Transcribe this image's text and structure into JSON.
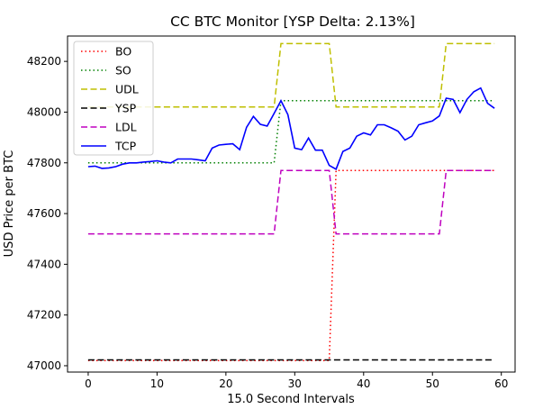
{
  "chart_data": {
    "type": "line",
    "title": "CC BTC Monitor [YSP Delta: 2.13%]",
    "xlabel": "15.0 Second Intervals",
    "ylabel": "USD Price per BTC",
    "xlim": [
      -3,
      62
    ],
    "ylim": [
      46975,
      48300
    ],
    "xticks": [
      0,
      10,
      20,
      30,
      40,
      50,
      60
    ],
    "yticks": [
      47000,
      47200,
      47400,
      47600,
      47800,
      48000,
      48200
    ],
    "grid": false,
    "legend": {
      "position": "top-left"
    },
    "series": [
      {
        "name": "BO",
        "color": "#ff0000",
        "style": "dotted",
        "x": [
          0,
          35,
          36,
          59
        ],
        "y": [
          47020,
          47020,
          47770,
          47770
        ]
      },
      {
        "name": "SO",
        "color": "#008000",
        "style": "dotted",
        "x": [
          0,
          27,
          28,
          59
        ],
        "y": [
          47800,
          47800,
          48045,
          48045
        ]
      },
      {
        "name": "UDL",
        "color": "#bfbf00",
        "style": "dashed",
        "x": [
          0,
          27,
          28,
          35,
          36,
          51,
          52,
          59
        ],
        "y": [
          48020,
          48020,
          48270,
          48270,
          48020,
          48020,
          48270,
          48270
        ]
      },
      {
        "name": "YSP",
        "color": "#000000",
        "style": "dashed",
        "x": [
          0,
          59
        ],
        "y": [
          47023,
          47023
        ]
      },
      {
        "name": "LDL",
        "color": "#bf00bf",
        "style": "dashed",
        "x": [
          0,
          27,
          28,
          35,
          36,
          51,
          52,
          59
        ],
        "y": [
          47520,
          47520,
          47770,
          47770,
          47520,
          47520,
          47770,
          47770
        ]
      },
      {
        "name": "TCP",
        "color": "#0000ff",
        "style": "solid",
        "x": [
          0,
          1,
          2,
          3,
          4,
          5,
          6,
          7,
          8,
          9,
          10,
          11,
          12,
          13,
          14,
          15,
          16,
          17,
          18,
          19,
          20,
          21,
          22,
          23,
          24,
          25,
          26,
          27,
          28,
          29,
          30,
          31,
          32,
          33,
          34,
          35,
          36,
          37,
          38,
          39,
          40,
          41,
          42,
          43,
          44,
          45,
          46,
          47,
          48,
          49,
          50,
          51,
          52,
          53,
          54,
          55,
          56,
          57,
          58,
          59
        ],
        "y": [
          47785,
          47787,
          47778,
          47780,
          47785,
          47795,
          47800,
          47800,
          47803,
          47805,
          47808,
          47803,
          47800,
          47815,
          47815,
          47815,
          47812,
          47808,
          47858,
          47870,
          47873,
          47875,
          47852,
          47940,
          47983,
          47952,
          47945,
          47995,
          48045,
          47990,
          47858,
          47852,
          47898,
          47850,
          47850,
          47790,
          47775,
          47845,
          47858,
          47905,
          47918,
          47910,
          47950,
          47950,
          47938,
          47925,
          47890,
          47905,
          47950,
          47958,
          47965,
          47985,
          48055,
          48050,
          47998,
          48050,
          48080,
          48095,
          48035,
          48015
        ]
      }
    ]
  }
}
